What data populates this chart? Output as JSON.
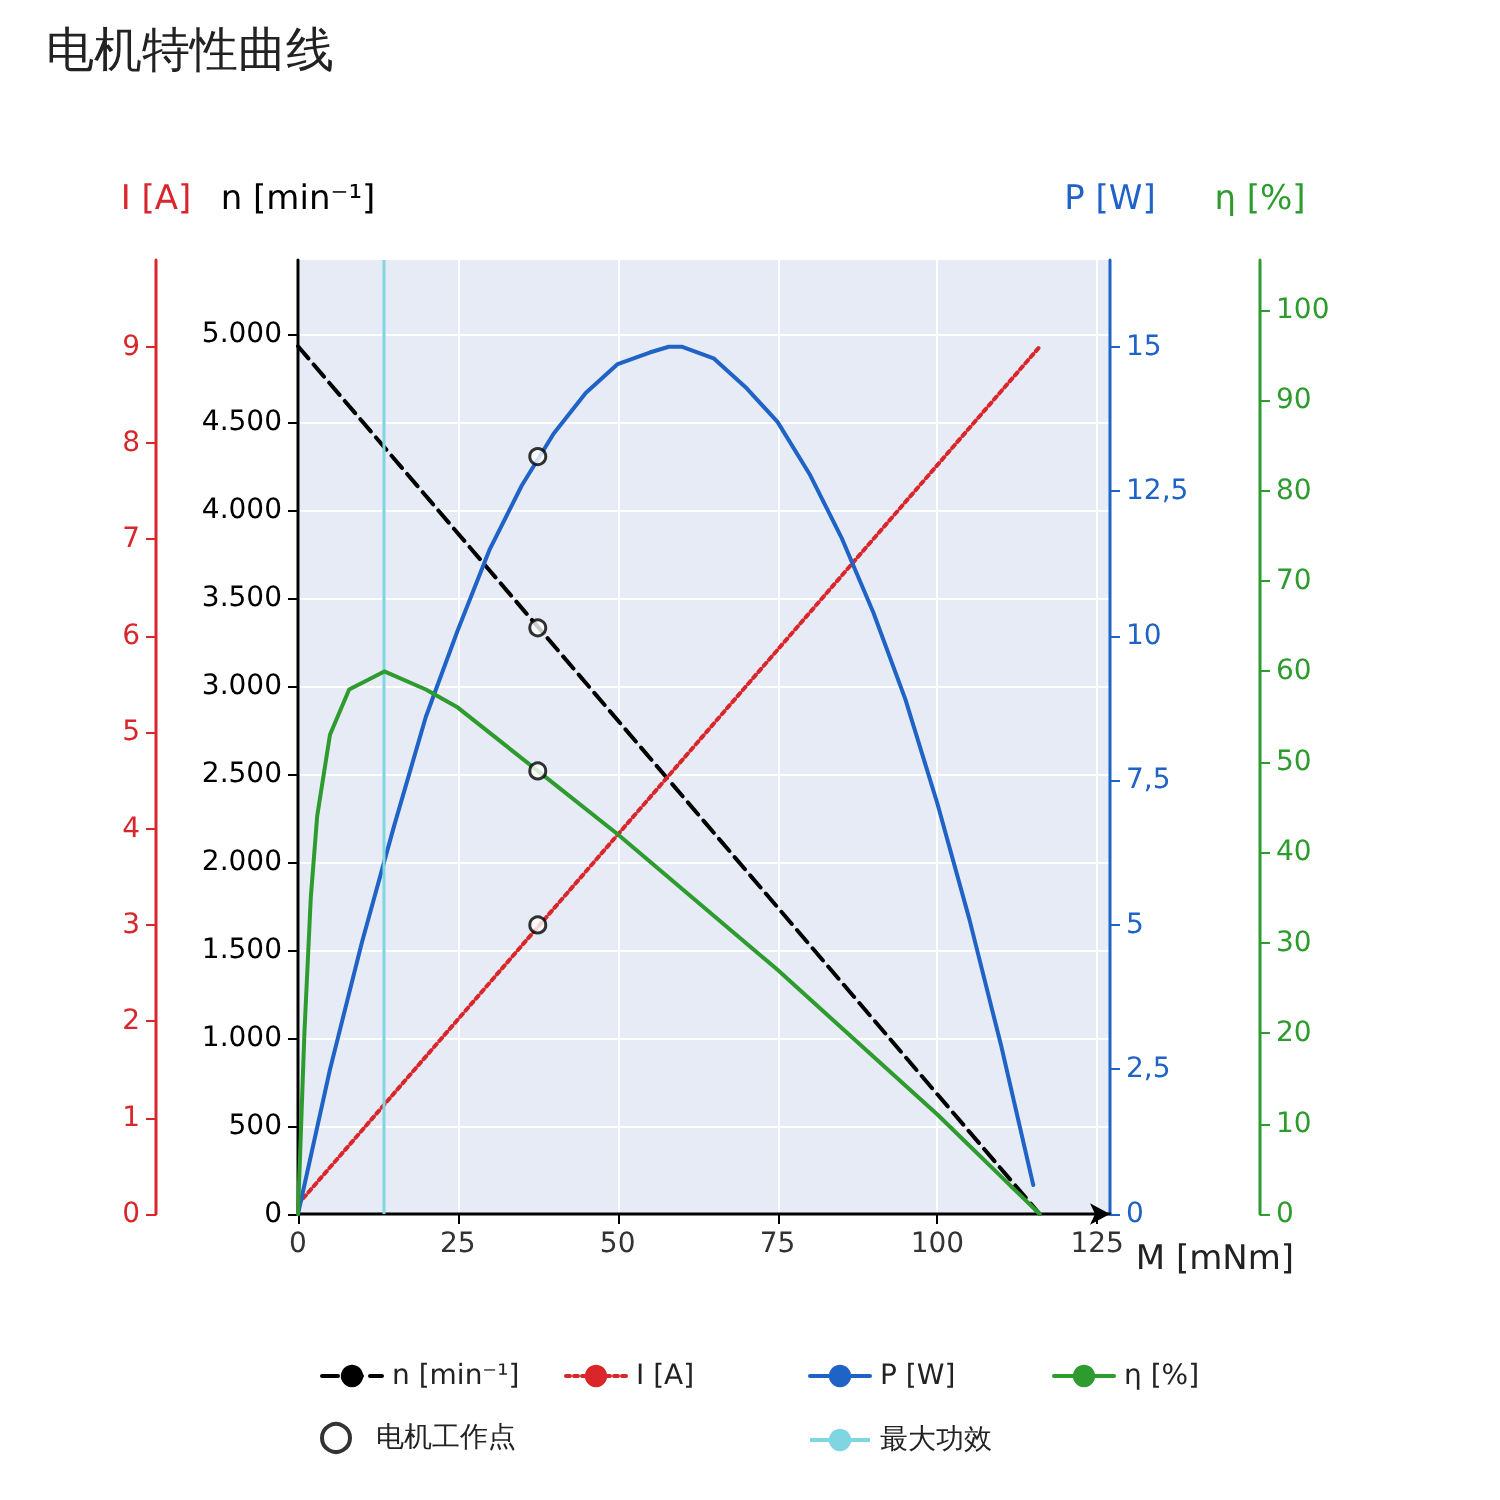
{
  "chart_data": [
    {
      "type": "line",
      "title": "电机特性曲线",
      "xlabel": "M [mNm]",
      "xlim": [
        0,
        127
      ],
      "xticks": [
        0,
        25,
        50,
        75,
        100,
        125
      ],
      "ylabel": "n [min⁻¹]",
      "ylim": [
        0,
        5420
      ],
      "yticks": [
        0,
        {
          "value": 500,
          "label": "500"
        },
        {
          "value": 1000,
          "label": "1.000"
        },
        {
          "value": 1500,
          "label": "1.500"
        },
        {
          "value": 2000,
          "label": "2.000"
        },
        {
          "value": 2500,
          "label": "2.500"
        },
        {
          "value": 3000,
          "label": "3.000"
        },
        {
          "value": 3500,
          "label": "3.500"
        },
        {
          "value": 4000,
          "label": "4.000"
        },
        {
          "value": 4500,
          "label": "4.500"
        },
        {
          "value": 5000,
          "label": "5.000"
        }
      ],
      "y2label": "I [A]",
      "y2lim": [
        0,
        9.9
      ],
      "y2ticks": [
        0,
        1,
        2,
        3,
        4,
        5,
        6,
        7,
        8,
        9
      ],
      "y3label": "P [W]",
      "y3lim": [
        0,
        16.5
      ],
      "y3ticks": [
        0,
        {
          "value": 2.5,
          "label": "2,5"
        },
        5,
        {
          "value": 7.5,
          "label": "7,5"
        },
        10,
        {
          "value": 12.5,
          "label": "12,5"
        },
        15
      ],
      "series": [
        {
          "name": "n [min⁻¹]",
          "color": "#000000",
          "line_style": "dashed",
          "marker": "none",
          "x": [
            0,
            116
          ],
          "values": [
            4930,
            0
          ]
        },
        {
          "name": "I [A]",
          "color": "#d9262b",
          "line_style": "dotted",
          "marker": "none",
          "axis": "y2",
          "x": [
            0,
            116
          ],
          "values": [
            0.1,
            9.0
          ]
        },
        {
          "name": "P [W]",
          "color": "#1f63c6",
          "line_style": "solid",
          "marker": "none",
          "axis": "y3",
          "x": [
            0,
            5,
            10,
            15,
            20,
            25,
            30,
            35,
            40,
            45,
            50,
            55,
            58,
            60,
            65,
            70,
            75,
            80,
            85,
            90,
            95,
            100,
            105,
            110,
            115
          ],
          "values": [
            0,
            2.5,
            4.7,
            6.7,
            8.6,
            10.1,
            11.5,
            12.6,
            13.5,
            14.2,
            14.7,
            14.9,
            15.0,
            15.0,
            14.8,
            14.3,
            13.7,
            12.8,
            11.7,
            10.4,
            8.9,
            7.1,
            5.1,
            2.9,
            0.5
          ]
        },
        {
          "name": "电机工作点",
          "type": "scatter",
          "color": "#000000",
          "marker": "circle",
          "x": [
            37.5
          ],
          "values": [
            3330
          ]
        },
        {
          "type": "scatter",
          "color": "#000000",
          "marker": "circle",
          "axis": "y2",
          "x": [
            37.5
          ],
          "values": [
            3.0
          ]
        },
        {
          "type": "scatter",
          "color": "#000000",
          "marker": "circle",
          "axis": "y3",
          "x": [
            37.5
          ],
          "values": [
            13.1
          ]
        }
      ],
      "ref_lines": [
        {
          "axis": "x",
          "value": 13.5,
          "label": "最大功效",
          "color": "#7fd6e0"
        }
      ],
      "grid": true,
      "legend": "bottom"
    },
    {
      "type": "line",
      "xlim": [
        0,
        127
      ],
      "tick_labels": "y",
      "ylabel": "η [%]",
      "ylim": [
        0,
        105.5
      ],
      "yticks": [
        0,
        10,
        20,
        30,
        40,
        50,
        60,
        70,
        80,
        90,
        100
      ],
      "series": [
        {
          "name": "η [%]",
          "color": "#2e9b2e",
          "line_style": "solid",
          "marker": "none",
          "x": [
            0,
            1,
            2,
            3,
            5,
            8,
            13.5,
            20,
            25,
            37.5,
            50,
            75,
            100,
            116
          ],
          "values": [
            0,
            20,
            35,
            44,
            53,
            58,
            60,
            58,
            56,
            49,
            42,
            27,
            11,
            0
          ]
        },
        {
          "type": "scatter",
          "color": "#000000",
          "marker": "circle",
          "x": [
            37.5
          ],
          "values": [
            49
          ]
        }
      ],
      "legend": "bottom"
    }
  ]
}
